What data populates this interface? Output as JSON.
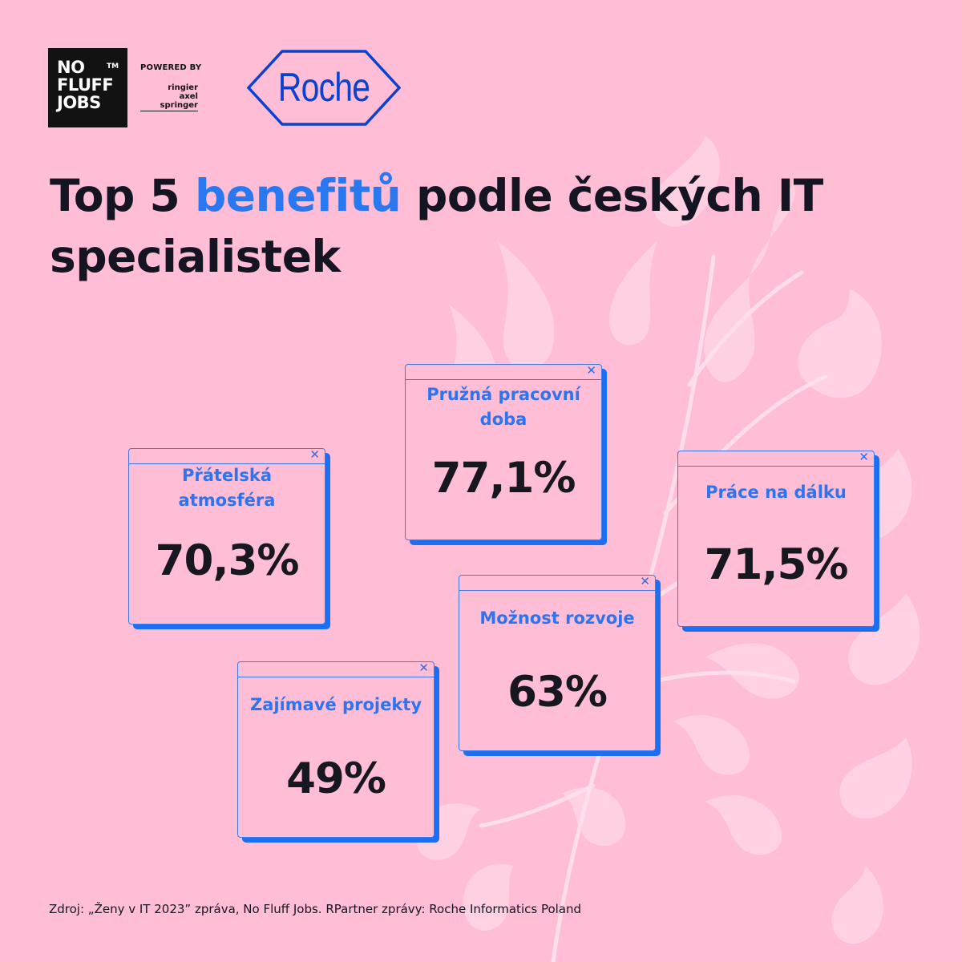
{
  "brand": {
    "nfj_lines": [
      "NO",
      "FLUFF",
      "JOBS"
    ],
    "nfj_tm": "TM",
    "powered_by": "POWERED BY",
    "ringier_line1": "ringier",
    "ringier_line2": "axel springer",
    "roche": "Roche",
    "roche_color": "#0b41cd"
  },
  "title": {
    "before": "Top 5 ",
    "highlight": "benefitů",
    "after": " podle českých IT specialistek",
    "highlight_color": "#2a78f0"
  },
  "cards": [
    {
      "label": "Pružná pracovní doba",
      "value": "77,1%"
    },
    {
      "label": "Přátelská atmosféra",
      "value": "70,3%"
    },
    {
      "label": "Práce na dálku",
      "value": "71,5%"
    },
    {
      "label": "Možnost rozvoje",
      "value": "63%"
    },
    {
      "label": "Zajímavé projekty",
      "value": "49%"
    }
  ],
  "close_glyph": "✕",
  "source": "Zdroj: „Ženy v  IT 2023” zpráva, No Fluff Jobs. RPartner zprávy: Roche Informatics Poland",
  "colors": {
    "background": "#ffbdd6",
    "card_accent": "#1b6ff2",
    "label_blue": "#2d74f1"
  }
}
